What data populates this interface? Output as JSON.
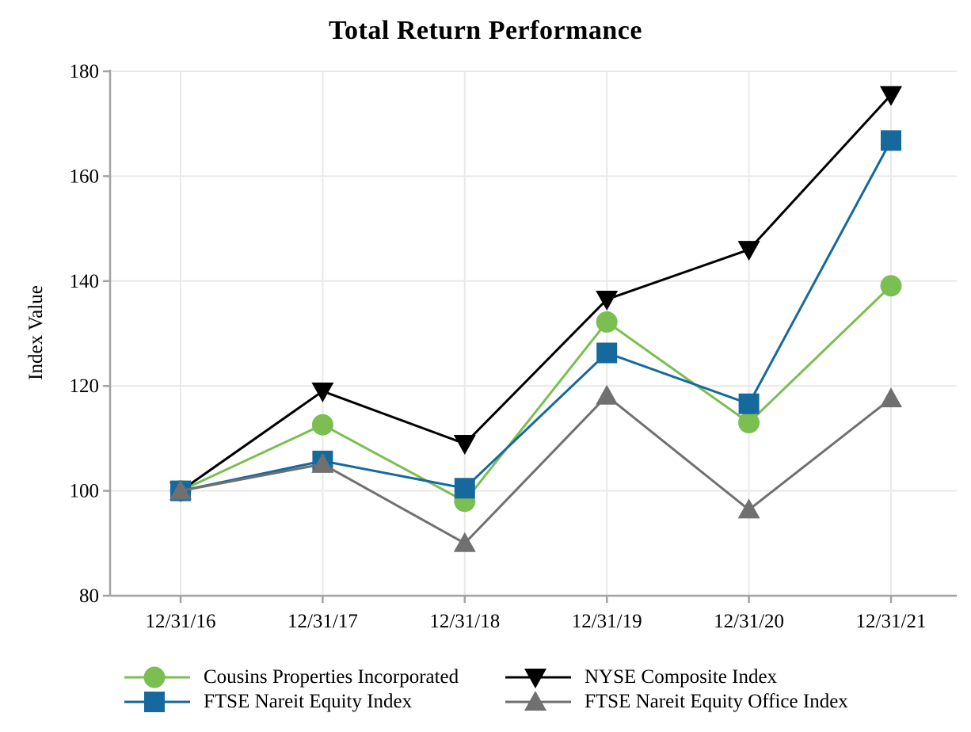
{
  "chart_data": {
    "type": "line",
    "title": "Total Return Performance",
    "xlabel": "",
    "ylabel": "Index Value",
    "categories": [
      "12/31/16",
      "12/31/17",
      "12/31/18",
      "12/31/19",
      "12/31/20",
      "12/31/21"
    ],
    "y_ticks": [
      80,
      100,
      120,
      140,
      160,
      180
    ],
    "ylim": [
      80,
      180
    ],
    "grid": true,
    "legend_position": "bottom",
    "series": [
      {
        "name": "Cousins Properties Incorporated",
        "marker": "circle",
        "color": "#7bbe51",
        "values": [
          100,
          112.6,
          98.0,
          132.2,
          113.0,
          139.1
        ]
      },
      {
        "name": "NYSE Composite Index",
        "marker": "triangle-down",
        "color": "#000000",
        "values": [
          100,
          119.0,
          109.0,
          136.5,
          146.0,
          175.5
        ]
      },
      {
        "name": "FTSE Nareit Equity Index",
        "marker": "square",
        "color": "#16699d",
        "values": [
          100,
          105.7,
          100.5,
          126.3,
          116.6,
          166.8
        ]
      },
      {
        "name": "FTSE Nareit Equity Office Index",
        "marker": "triangle-up",
        "color": "#707070",
        "values": [
          100,
          105.1,
          90.0,
          118.1,
          96.4,
          117.6
        ]
      }
    ],
    "colors": {
      "background": "#ffffff",
      "gridline": "#e9e9e9",
      "axis": "#a3a3a3",
      "text": "#000000"
    }
  }
}
